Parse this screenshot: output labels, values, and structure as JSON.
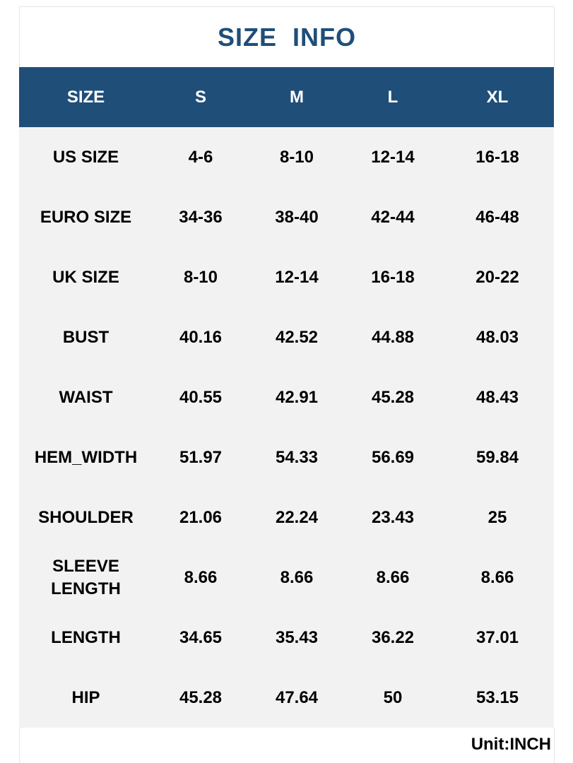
{
  "header": {
    "title": "SIZE  INFO"
  },
  "table": {
    "columns": [
      "SIZE",
      "S",
      "M",
      "L",
      "XL"
    ],
    "rows": [
      [
        "US SIZE",
        "4-6",
        "8-10",
        "12-14",
        "16-18"
      ],
      [
        "EURO SIZE",
        "34-36",
        "38-40",
        "42-44",
        "46-48"
      ],
      [
        "UK SIZE",
        "8-10",
        "12-14",
        "16-18",
        "20-22"
      ],
      [
        "BUST",
        "40.16",
        "42.52",
        "44.88",
        "48.03"
      ],
      [
        "WAIST",
        "40.55",
        "42.91",
        "45.28",
        "48.43"
      ],
      [
        "HEM_WIDTH",
        "51.97",
        "54.33",
        "56.69",
        "59.84"
      ],
      [
        "SHOULDER",
        "21.06",
        "22.24",
        "23.43",
        "25"
      ],
      [
        "SLEEVE LENGTH",
        "8.66",
        "8.66",
        "8.66",
        "8.66"
      ],
      [
        "LENGTH",
        "34.65",
        "35.43",
        "36.22",
        "37.01"
      ],
      [
        "HIP",
        "45.28",
        "47.64",
        "50",
        "53.15"
      ]
    ]
  },
  "footer": {
    "unit": "Unit:INCH"
  }
}
